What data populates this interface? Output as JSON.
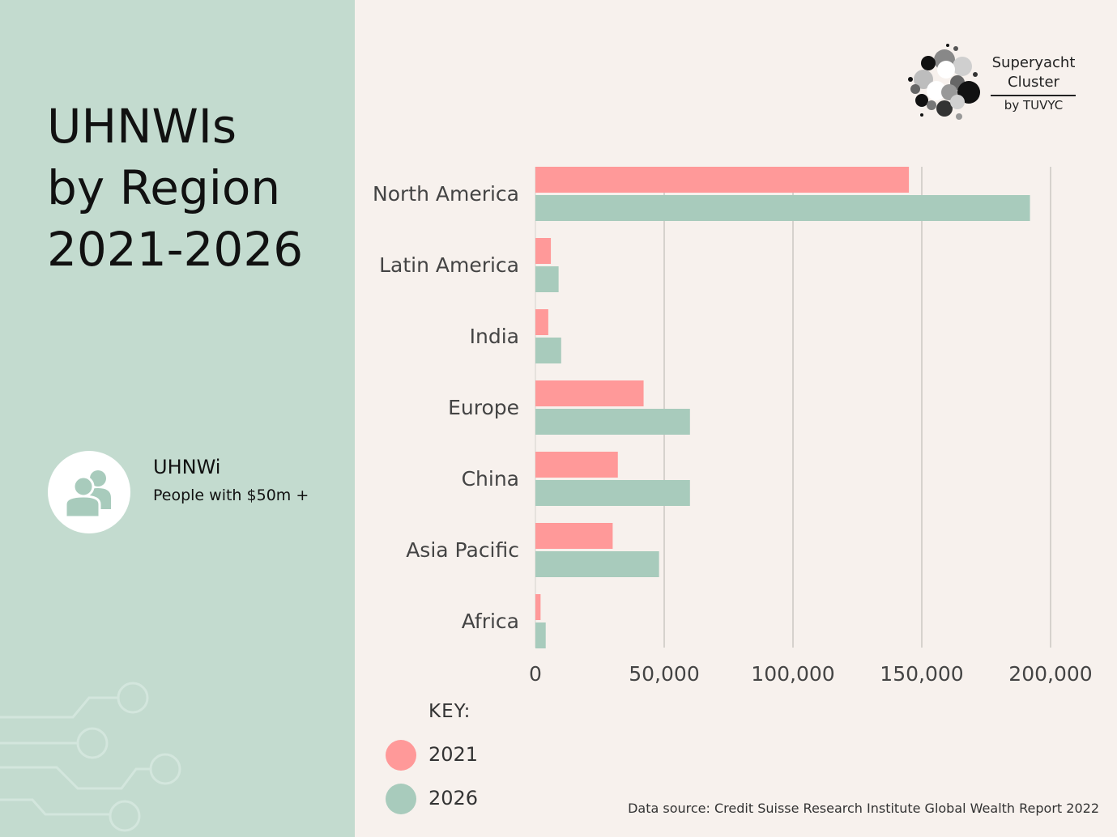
{
  "title_lines": [
    "UHNWIs",
    "by Region",
    "2021-2026"
  ],
  "definition": {
    "term": "UHNWi",
    "description": "People with $50m +",
    "icon": "people-icon"
  },
  "brand": {
    "line1": "Superyacht",
    "line2": "Cluster",
    "line3": "by TUVYC"
  },
  "key": {
    "label": "KEY:",
    "items": [
      "2021",
      "2026"
    ]
  },
  "source": "Data source: Credit Suisse Research Institute Global Wealth Report 2022",
  "colors": {
    "left_panel": "#c3dbcf",
    "background": "#f7f1ed",
    "series_2021": "#ff9999",
    "series_2026": "#a8cbbc"
  },
  "chart_data": {
    "type": "bar",
    "orientation": "horizontal",
    "categories": [
      "North America",
      "Latin America",
      "India",
      "Europe",
      "China",
      "Asia Pacific",
      "Africa"
    ],
    "series": [
      {
        "name": "2021",
        "color": "#ff9999",
        "values": [
          145000,
          6000,
          5000,
          42000,
          32000,
          30000,
          2000
        ]
      },
      {
        "name": "2026",
        "color": "#a8cbbc",
        "values": [
          192000,
          9000,
          10000,
          60000,
          60000,
          48000,
          4000
        ]
      }
    ],
    "xlim": [
      0,
      200000
    ],
    "xticks": [
      "0",
      "50,000",
      "100,000",
      "150,000",
      "200,000"
    ],
    "grid": true,
    "legend": "bottom-left"
  }
}
